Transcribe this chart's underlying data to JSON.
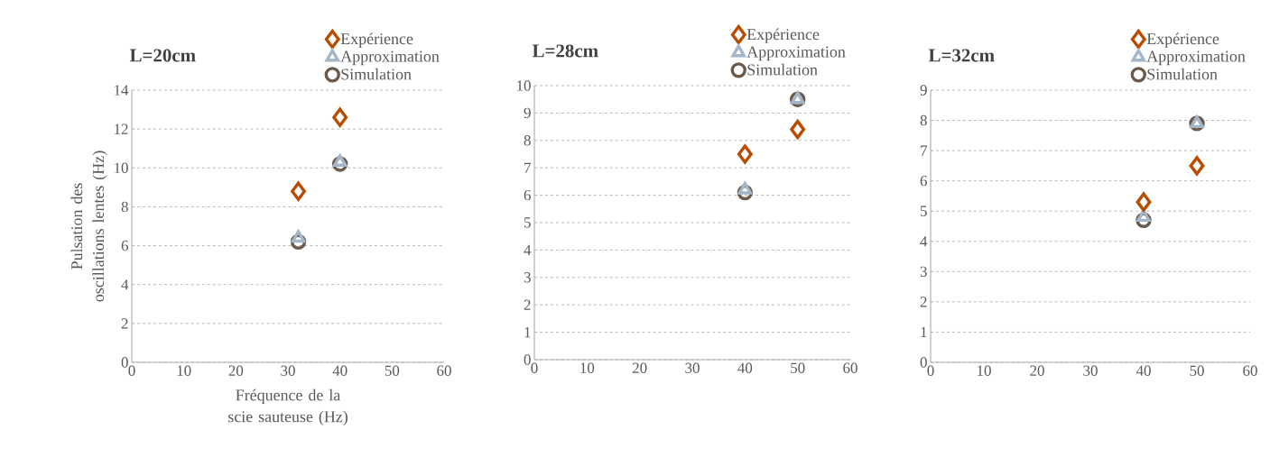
{
  "chart_data": [
    {
      "type": "scatter",
      "title": "L=20cm",
      "xlabel": "Fréquence de la scie sauteuse (Hz)",
      "ylabel": "Pulsation des oscillations lentes (Hz)",
      "xlim": [
        0,
        60
      ],
      "xticks": [
        0,
        10,
        20,
        30,
        40,
        50,
        60
      ],
      "ylim": [
        0,
        14
      ],
      "yticks": [
        0,
        2,
        4,
        6,
        8,
        10,
        12,
        14
      ],
      "grid": "y",
      "legend": "top right",
      "series": [
        {
          "name": "Expérience",
          "color": "#b84c00",
          "marker": "diamond",
          "x": [
            32,
            40
          ],
          "values": [
            8.8,
            12.6
          ]
        },
        {
          "name": "Approximation",
          "color": "#a3b6ca",
          "marker": "triangle",
          "x": [
            32,
            40
          ],
          "values": [
            6.4,
            10.3
          ]
        },
        {
          "name": "Simulation",
          "color": "#6b5a4a",
          "marker": "circle",
          "x": [
            32,
            40
          ],
          "values": [
            6.2,
            10.2
          ]
        }
      ]
    },
    {
      "type": "scatter",
      "title": "L=28cm",
      "xlim": [
        0,
        60
      ],
      "xticks": [
        0,
        10,
        20,
        30,
        40,
        50,
        60
      ],
      "ylim": [
        0,
        10
      ],
      "yticks": [
        0,
        1,
        2,
        3,
        4,
        5,
        6,
        7,
        8,
        9,
        10
      ],
      "grid": "y",
      "legend": "top right",
      "series": [
        {
          "name": "Expérience",
          "color": "#b84c00",
          "marker": "diamond",
          "x": [
            40,
            50
          ],
          "values": [
            7.5,
            8.4
          ]
        },
        {
          "name": "Approximation",
          "color": "#a3b6ca",
          "marker": "triangle",
          "x": [
            40,
            50
          ],
          "values": [
            6.2,
            9.5
          ]
        },
        {
          "name": "Simulation",
          "color": "#6b5a4a",
          "marker": "circle",
          "x": [
            40,
            50
          ],
          "values": [
            6.1,
            9.5
          ]
        }
      ]
    },
    {
      "type": "scatter",
      "title": "L=32cm",
      "xlim": [
        0,
        60
      ],
      "xticks": [
        0,
        10,
        20,
        30,
        40,
        50,
        60
      ],
      "ylim": [
        0,
        9
      ],
      "yticks": [
        0,
        1,
        2,
        3,
        4,
        5,
        6,
        7,
        8,
        9
      ],
      "grid": "y",
      "legend": "top right",
      "series": [
        {
          "name": "Expérience",
          "color": "#b84c00",
          "marker": "diamond",
          "x": [
            40,
            50
          ],
          "values": [
            5.3,
            6.5
          ]
        },
        {
          "name": "Approximation",
          "color": "#a3b6ca",
          "marker": "triangle",
          "x": [
            40,
            50
          ],
          "values": [
            4.8,
            7.9
          ]
        },
        {
          "name": "Simulation",
          "color": "#6b5a4a",
          "marker": "circle",
          "x": [
            40,
            50
          ],
          "values": [
            4.7,
            7.9
          ]
        }
      ]
    }
  ]
}
